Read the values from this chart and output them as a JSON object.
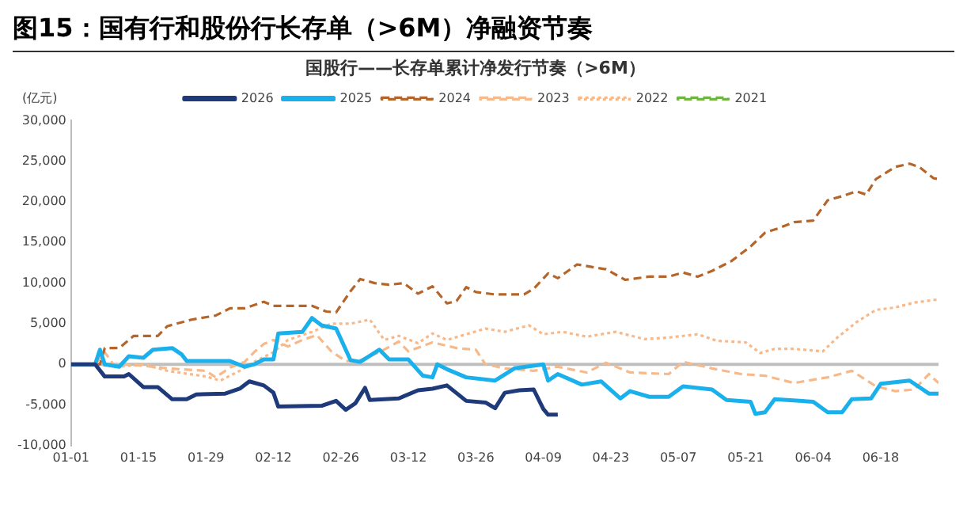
{
  "chart_data": {
    "type": "line",
    "title": "图15：国有行和股份行长存单（>6M）净融资节奏",
    "subtitle": "国股行——长存单累计净发行节奏（>6M）",
    "ylabel": "(亿元)",
    "xlim": [
      "--01-01",
      "--06-30"
    ],
    "xticks": [
      {
        "value": "--01-01",
        "label": "01-01"
      },
      {
        "value": "--01-15",
        "label": "01-15"
      },
      {
        "value": "--01-29",
        "label": "01-29"
      },
      {
        "value": "--02-12",
        "label": "02-12"
      },
      {
        "value": "--02-26",
        "label": "02-26"
      },
      {
        "value": "--03-12",
        "label": "03-12"
      },
      {
        "value": "--03-26",
        "label": "03-26"
      },
      {
        "value": "--04-09",
        "label": "04-09"
      },
      {
        "value": "--04-23",
        "label": "04-23"
      },
      {
        "value": "--05-07",
        "label": "05-07"
      },
      {
        "value": "--05-21",
        "label": "05-21"
      },
      {
        "value": "--06-04",
        "label": "06-04"
      },
      {
        "value": "--06-18",
        "label": "06-18"
      }
    ],
    "ylim": [
      -10000,
      30000
    ],
    "yticks": [
      {
        "value": -10000,
        "label": "-10,000"
      },
      {
        "value": -5000,
        "label": "-5,000"
      },
      {
        "value": 0,
        "label": "0"
      },
      {
        "value": 5000,
        "label": "5,000"
      },
      {
        "value": 10000,
        "label": "10,000"
      },
      {
        "value": 15000,
        "label": "15,000"
      },
      {
        "value": 20000,
        "label": "20,000"
      },
      {
        "value": 25000,
        "label": "25,000"
      },
      {
        "value": 30000,
        "label": "30,000"
      }
    ],
    "grid": false,
    "legend": "top",
    "marker": "none",
    "ref_lines": [
      {
        "axis": "y",
        "value": 0,
        "color": "#bfbfbf"
      }
    ],
    "series": [
      {
        "name": "2026",
        "color": "#1f3a7a",
        "line_style": "solid",
        "x": [
          "--01-01",
          "--01-06",
          "--01-08",
          "--01-12",
          "--01-13",
          "--01-16",
          "--01-19",
          "--01-22",
          "--01-25",
          "--01-27",
          "--02-02",
          "--02-05",
          "--02-07",
          "--02-10",
          "--02-12",
          "--02-13",
          "--02-22",
          "--02-25",
          "--02-27",
          "--03-01",
          "--03-03",
          "--03-04",
          "--03-10",
          "--03-14",
          "--03-17",
          "--03-20",
          "--03-24",
          "--03-28",
          "--03-30",
          "--04-01",
          "--04-04",
          "--04-07",
          "--04-09",
          "--04-10",
          "--04-12"
        ],
        "values": [
          0,
          0,
          -1500,
          -1500,
          -1200,
          -2800,
          -2800,
          -4300,
          -4300,
          -3700,
          -3600,
          -3000,
          -2100,
          -2600,
          -3500,
          -5200,
          -5100,
          -4500,
          -5600,
          -4800,
          -2900,
          -4400,
          -4200,
          -3200,
          -3000,
          -2600,
          -4500,
          -4700,
          -5400,
          -3500,
          -3200,
          -3100,
          -5500,
          -6200,
          -6200
        ]
      },
      {
        "name": "2025",
        "color": "#1ab0ec",
        "line_style": "solid",
        "x": [
          "--01-01",
          "--01-06",
          "--01-07",
          "--01-08",
          "--01-11",
          "--01-13",
          "--01-16",
          "--01-18",
          "--01-22",
          "--01-24",
          "--01-25",
          "--02-03",
          "--02-06",
          "--02-08",
          "--02-10",
          "--02-12",
          "--02-13",
          "--02-18",
          "--02-20",
          "--02-22",
          "--02-25",
          "--02-28",
          "--03-02",
          "--03-06",
          "--03-08",
          "--03-12",
          "--03-15",
          "--03-17",
          "--03-18",
          "--03-20",
          "--03-24",
          "--03-30",
          "--04-03",
          "--04-09",
          "--04-10",
          "--04-12",
          "--04-17",
          "--04-21",
          "--04-25",
          "--04-27",
          "--05-01",
          "--05-05",
          "--05-08",
          "--05-14",
          "--05-17",
          "--05-22",
          "--05-23",
          "--05-25",
          "--05-27",
          "--06-04",
          "--06-07",
          "--06-10",
          "--06-12",
          "--06-16",
          "--06-18",
          "--06-24",
          "--06-28",
          "--06-30"
        ],
        "values": [
          0,
          0,
          1800,
          0,
          -300,
          1000,
          800,
          1800,
          2000,
          1200,
          400,
          400,
          -300,
          0,
          600,
          600,
          3800,
          4000,
          5700,
          4800,
          4400,
          500,
          300,
          1800,
          600,
          600,
          -1400,
          -1600,
          0,
          -600,
          -1600,
          -2000,
          -500,
          0,
          -2000,
          -1200,
          -2500,
          -2100,
          -4200,
          -3300,
          -4000,
          -4000,
          -2700,
          -3100,
          -4400,
          -4600,
          -6100,
          -5900,
          -4300,
          -4600,
          -5900,
          -5900,
          -4300,
          -4200,
          -2400,
          -2000,
          -3600,
          -3600
        ]
      },
      {
        "name": "2024",
        "color": "#b5652a",
        "line_style": "dashed",
        "x": [
          "--01-01",
          "--01-07",
          "--01-08",
          "--01-11",
          "--01-14",
          "--01-19",
          "--01-21",
          "--01-26",
          "--01-31",
          "--02-03",
          "--02-06",
          "--02-10",
          "--02-12",
          "--02-20",
          "--02-23",
          "--02-25",
          "--02-28",
          "--03-02",
          "--03-05",
          "--03-08",
          "--03-11",
          "--03-14",
          "--03-17",
          "--03-20",
          "--03-22",
          "--03-24",
          "--03-26",
          "--03-30",
          "--04-05",
          "--04-07",
          "--04-10",
          "--04-12",
          "--04-16",
          "--04-22",
          "--04-26",
          "--05-01",
          "--05-05",
          "--05-08",
          "--05-11",
          "--05-14",
          "--05-18",
          "--05-22",
          "--05-25",
          "--05-28",
          "--05-31",
          "--06-04",
          "--06-07",
          "--06-10",
          "--06-13",
          "--06-15",
          "--06-17",
          "--06-21",
          "--06-24",
          "--06-26",
          "--06-29",
          "--06-30"
        ],
        "values": [
          0,
          0,
          2000,
          2000,
          3500,
          3500,
          4700,
          5500,
          6000,
          6900,
          6900,
          7700,
          7200,
          7200,
          6500,
          6400,
          9000,
          10500,
          10000,
          9800,
          10000,
          8700,
          9600,
          7500,
          7800,
          9500,
          8900,
          8600,
          8600,
          9300,
          11200,
          10600,
          12300,
          11700,
          10400,
          10800,
          10800,
          11300,
          10800,
          11500,
          12700,
          14500,
          16200,
          16800,
          17500,
          17700,
          20200,
          20700,
          21300,
          20900,
          22800,
          24300,
          24700,
          24300,
          22900,
          22800
        ]
      },
      {
        "name": "2023",
        "color": "#f8b98a",
        "line_style": "dashed",
        "x": [
          "--01-01",
          "--01-06",
          "--01-08",
          "--01-10",
          "--01-13",
          "--01-21",
          "--01-29",
          "--01-31",
          "--02-03",
          "--02-06",
          "--02-08",
          "--02-10",
          "--02-12",
          "--02-15",
          "--02-18",
          "--02-21",
          "--02-24",
          "--02-27",
          "--03-02",
          "--03-06",
          "--03-10",
          "--03-12",
          "--03-17",
          "--03-22",
          "--03-26",
          "--03-28",
          "--04-01",
          "--04-07",
          "--04-12",
          "--04-18",
          "--04-22",
          "--04-27",
          "--05-05",
          "--05-08",
          "--05-14",
          "--05-20",
          "--05-25",
          "--05-31",
          "--06-07",
          "--06-12",
          "--06-17",
          "--06-21",
          "--06-25",
          "--06-28",
          "--06-30"
        ],
        "values": [
          0,
          0,
          1500,
          -200,
          0,
          -500,
          -800,
          -1600,
          -400,
          300,
          1500,
          2500,
          3000,
          2200,
          3000,
          3600,
          1600,
          400,
          500,
          1500,
          2800,
          1600,
          2700,
          2000,
          1800,
          0,
          -500,
          -800,
          -300,
          -1000,
          200,
          -1000,
          -1200,
          300,
          -500,
          -1200,
          -1400,
          -2300,
          -1600,
          -800,
          -2700,
          -3300,
          -3100,
          -1200,
          -2300
        ]
      },
      {
        "name": "2022",
        "color": "#f8b98a",
        "line_style": "dotted",
        "x": [
          "--01-01",
          "--01-06",
          "--01-11",
          "--01-16",
          "--01-21",
          "--01-29",
          "--02-01",
          "--02-05",
          "--02-08",
          "--02-12",
          "--02-15",
          "--02-20",
          "--02-24",
          "--02-28",
          "--03-04",
          "--03-07",
          "--03-10",
          "--03-14",
          "--03-17",
          "--03-20",
          "--03-24",
          "--03-28",
          "--04-01",
          "--04-06",
          "--04-09",
          "--04-13",
          "--04-18",
          "--04-24",
          "--04-30",
          "--05-05",
          "--05-11",
          "--05-15",
          "--05-21",
          "--05-24",
          "--05-27",
          "--05-31",
          "--06-06",
          "--06-09",
          "--06-13",
          "--06-17",
          "--06-21",
          "--06-25",
          "--06-30"
        ],
        "values": [
          0,
          0,
          -300,
          0,
          -800,
          -1500,
          -2000,
          -800,
          300,
          1500,
          3000,
          4000,
          5000,
          5000,
          5500,
          3000,
          3500,
          2600,
          3800,
          3000,
          3700,
          4400,
          4000,
          4800,
          3700,
          4000,
          3400,
          4000,
          3100,
          3300,
          3700,
          2900,
          2700,
          1400,
          1900,
          1900,
          1600,
          3300,
          5200,
          6700,
          7000,
          7600,
          8000
        ]
      },
      {
        "name": "2021",
        "color": "#6fb53f",
        "line_style": "dashed"
      }
    ]
  }
}
